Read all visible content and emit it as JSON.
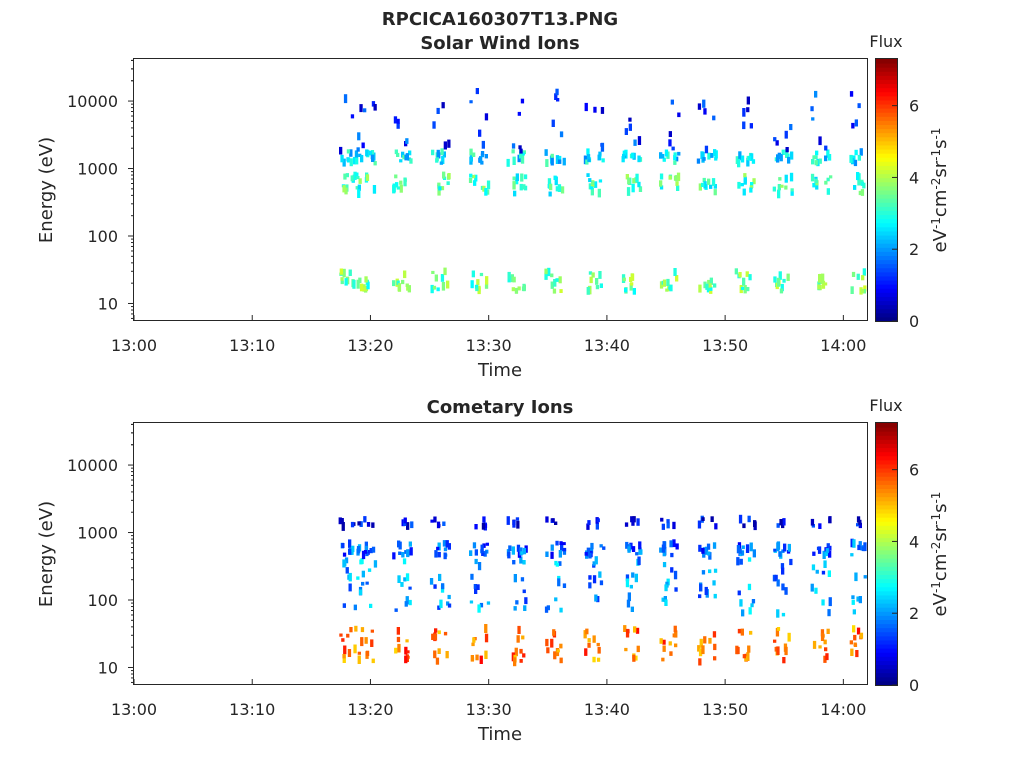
{
  "figure_title": "RPCICA160307T13.PNG",
  "chart_data": [
    {
      "type": "heatmap",
      "title": "Solar Wind Ions",
      "xlabel": "Time",
      "ylabel": "Energy (eV)",
      "x_ticks": [
        "13:00",
        "13:10",
        "13:20",
        "13:30",
        "13:40",
        "13:50",
        "14:00"
      ],
      "x_range_minutes": [
        0,
        62
      ],
      "y_scale": "log",
      "y_ticks": [
        "10",
        "100",
        "1000",
        "10000"
      ],
      "y_tick_values": [
        10,
        100,
        1000,
        10000
      ],
      "y_range": [
        5.5,
        42000
      ],
      "colorbar": {
        "label": "Flux",
        "unit_label": "eV-1cm-2sr-1s-1",
        "ticks": [
          "0",
          "2",
          "4",
          "6"
        ],
        "range": [
          0,
          7.3
        ],
        "colormap": "jet"
      },
      "sweep_times_minutes": [
        17.8,
        19.2,
        22.3,
        25.5,
        28.8,
        32.0,
        35.2,
        38.5,
        41.7,
        44.9,
        48.1,
        51.3,
        54.5,
        57.7,
        61.0
      ],
      "bands": [
        {
          "energy_eV": [
            15,
            30
          ],
          "flux": 3.5
        },
        {
          "energy_eV": [
            420,
            800
          ],
          "flux": 3.2
        },
        {
          "energy_eV": [
            1200,
            1800
          ],
          "flux": 2.6
        },
        {
          "energy_eV": [
            1800,
            15000
          ],
          "flux": 1.2
        }
      ]
    },
    {
      "type": "heatmap",
      "title": "Cometary Ions",
      "xlabel": "Time",
      "ylabel": "Energy (eV)",
      "x_ticks": [
        "13:00",
        "13:10",
        "13:20",
        "13:30",
        "13:40",
        "13:50",
        "14:00"
      ],
      "x_range_minutes": [
        0,
        62
      ],
      "y_scale": "log",
      "y_ticks": [
        "10",
        "100",
        "1000",
        "10000"
      ],
      "y_tick_values": [
        10,
        100,
        1000,
        10000
      ],
      "y_range": [
        5.5,
        42000
      ],
      "colorbar": {
        "label": "Flux",
        "unit_label": "eV-1cm-2sr-1s-1",
        "ticks": [
          "0",
          "2",
          "4",
          "6"
        ],
        "range": [
          0,
          7.3
        ],
        "colormap": "jet"
      },
      "sweep_times_minutes": [
        17.8,
        19.2,
        22.3,
        25.5,
        28.8,
        32.0,
        35.2,
        38.5,
        41.7,
        44.9,
        48.1,
        51.3,
        54.5,
        57.7,
        61.0
      ],
      "bands": [
        {
          "energy_eV": [
            12,
            38
          ],
          "flux": 5.6
        },
        {
          "energy_eV": [
            60,
            400
          ],
          "flux": 2.0
        },
        {
          "energy_eV": [
            450,
            700
          ],
          "flux": 1.6
        },
        {
          "energy_eV": [
            1200,
            1600
          ],
          "flux": 0.8
        }
      ]
    }
  ]
}
